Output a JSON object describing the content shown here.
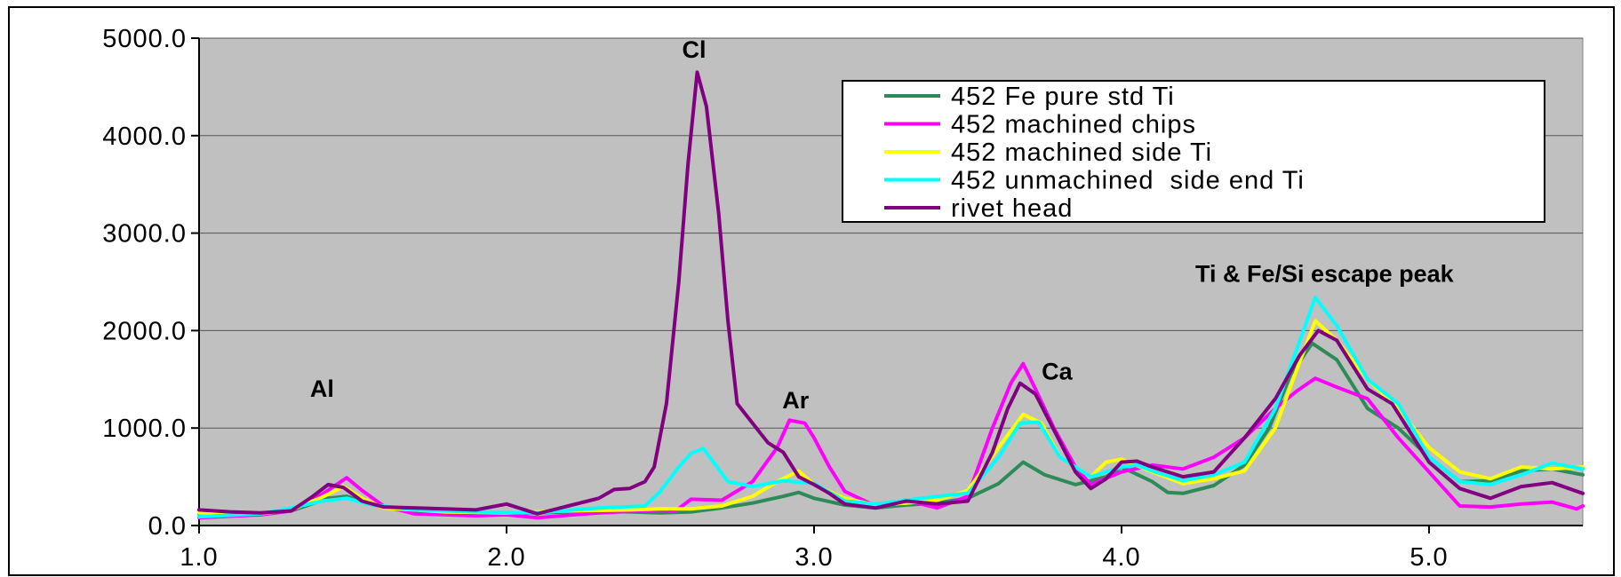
{
  "chart_data": {
    "type": "line",
    "title": "",
    "xlabel": "",
    "ylabel": "",
    "xlim": [
      1.0,
      5.5
    ],
    "ylim": [
      0,
      5000
    ],
    "grid": true,
    "legend_position": "top-right",
    "x_ticks": [
      "1.0",
      "2.0",
      "3.0",
      "4.0",
      "5.0"
    ],
    "y_ticks": [
      "0.0",
      "1000.0",
      "2000.0",
      "3000.0",
      "4000.0",
      "5000.0"
    ],
    "annotations": [
      {
        "text": "Al",
        "x": 1.4,
        "y": 1320
      },
      {
        "text": "Cl",
        "x": 2.61,
        "y": 4800
      },
      {
        "text": "Ar",
        "x": 2.94,
        "y": 1200
      },
      {
        "text": "Ca",
        "x": 3.79,
        "y": 1500
      },
      {
        "text": "Ti & Fe/Si escape peak",
        "x": 4.66,
        "y": 2500
      }
    ],
    "series": [
      {
        "name": "452 Fe pure std Ti",
        "color": "#2E8B57",
        "points": [
          [
            1.0,
            120
          ],
          [
            1.2,
            110
          ],
          [
            1.3,
            150
          ],
          [
            1.42,
            280
          ],
          [
            1.48,
            300
          ],
          [
            1.55,
            220
          ],
          [
            1.7,
            150
          ],
          [
            1.9,
            110
          ],
          [
            2.1,
            130
          ],
          [
            2.3,
            150
          ],
          [
            2.5,
            130
          ],
          [
            2.6,
            140
          ],
          [
            2.7,
            180
          ],
          [
            2.8,
            230
          ],
          [
            2.9,
            300
          ],
          [
            2.95,
            340
          ],
          [
            3.0,
            280
          ],
          [
            3.1,
            210
          ],
          [
            3.2,
            180
          ],
          [
            3.3,
            210
          ],
          [
            3.4,
            230
          ],
          [
            3.5,
            280
          ],
          [
            3.6,
            430
          ],
          [
            3.68,
            650
          ],
          [
            3.75,
            520
          ],
          [
            3.85,
            420
          ],
          [
            3.95,
            500
          ],
          [
            4.0,
            600
          ],
          [
            4.1,
            450
          ],
          [
            4.15,
            340
          ],
          [
            4.2,
            330
          ],
          [
            4.3,
            410
          ],
          [
            4.4,
            620
          ],
          [
            4.48,
            1000
          ],
          [
            4.55,
            1550
          ],
          [
            4.62,
            1870
          ],
          [
            4.7,
            1700
          ],
          [
            4.8,
            1200
          ],
          [
            4.9,
            1000
          ],
          [
            5.0,
            700
          ],
          [
            5.1,
            450
          ],
          [
            5.2,
            460
          ],
          [
            5.3,
            560
          ],
          [
            5.4,
            580
          ],
          [
            5.5,
            520
          ]
        ]
      },
      {
        "name": "452 machined chips",
        "color": "#FF00FF",
        "points": [
          [
            1.0,
            80
          ],
          [
            1.2,
            110
          ],
          [
            1.3,
            150
          ],
          [
            1.4,
            320
          ],
          [
            1.48,
            490
          ],
          [
            1.53,
            360
          ],
          [
            1.6,
            200
          ],
          [
            1.7,
            120
          ],
          [
            1.9,
            100
          ],
          [
            2.0,
            110
          ],
          [
            2.1,
            80
          ],
          [
            2.3,
            130
          ],
          [
            2.5,
            160
          ],
          [
            2.55,
            150
          ],
          [
            2.6,
            270
          ],
          [
            2.7,
            260
          ],
          [
            2.8,
            450
          ],
          [
            2.88,
            800
          ],
          [
            2.92,
            1080
          ],
          [
            2.97,
            1050
          ],
          [
            3.0,
            900
          ],
          [
            3.05,
            600
          ],
          [
            3.1,
            350
          ],
          [
            3.2,
            200
          ],
          [
            3.3,
            260
          ],
          [
            3.4,
            180
          ],
          [
            3.5,
            300
          ],
          [
            3.58,
            1000
          ],
          [
            3.64,
            1460
          ],
          [
            3.68,
            1660
          ],
          [
            3.72,
            1400
          ],
          [
            3.78,
            1000
          ],
          [
            3.85,
            600
          ],
          [
            3.9,
            420
          ],
          [
            4.0,
            550
          ],
          [
            4.1,
            620
          ],
          [
            4.2,
            580
          ],
          [
            4.3,
            700
          ],
          [
            4.4,
            900
          ],
          [
            4.5,
            1200
          ],
          [
            4.57,
            1380
          ],
          [
            4.63,
            1510
          ],
          [
            4.7,
            1420
          ],
          [
            4.8,
            1300
          ],
          [
            4.9,
            900
          ],
          [
            5.0,
            550
          ],
          [
            5.1,
            200
          ],
          [
            5.2,
            190
          ],
          [
            5.3,
            220
          ],
          [
            5.4,
            240
          ],
          [
            5.48,
            170
          ],
          [
            5.5,
            200
          ]
        ]
      },
      {
        "name": "452 machined side Ti",
        "color": "#FFFF00",
        "points": [
          [
            1.0,
            130
          ],
          [
            1.2,
            120
          ],
          [
            1.3,
            160
          ],
          [
            1.4,
            290
          ],
          [
            1.47,
            400
          ],
          [
            1.53,
            280
          ],
          [
            1.6,
            180
          ],
          [
            1.8,
            140
          ],
          [
            2.0,
            130
          ],
          [
            2.2,
            150
          ],
          [
            2.4,
            160
          ],
          [
            2.5,
            170
          ],
          [
            2.6,
            170
          ],
          [
            2.7,
            200
          ],
          [
            2.8,
            300
          ],
          [
            2.88,
            450
          ],
          [
            2.95,
            560
          ],
          [
            3.0,
            420
          ],
          [
            3.1,
            280
          ],
          [
            3.2,
            210
          ],
          [
            3.3,
            230
          ],
          [
            3.4,
            260
          ],
          [
            3.5,
            360
          ],
          [
            3.6,
            800
          ],
          [
            3.68,
            1140
          ],
          [
            3.74,
            1050
          ],
          [
            3.8,
            700
          ],
          [
            3.9,
            500
          ],
          [
            3.95,
            650
          ],
          [
            4.0,
            680
          ],
          [
            4.1,
            550
          ],
          [
            4.2,
            430
          ],
          [
            4.3,
            480
          ],
          [
            4.4,
            560
          ],
          [
            4.5,
            1000
          ],
          [
            4.57,
            1600
          ],
          [
            4.63,
            2100
          ],
          [
            4.7,
            1900
          ],
          [
            4.8,
            1500
          ],
          [
            4.9,
            1200
          ],
          [
            5.0,
            800
          ],
          [
            5.1,
            550
          ],
          [
            5.2,
            480
          ],
          [
            5.3,
            600
          ],
          [
            5.4,
            580
          ],
          [
            5.5,
            600
          ]
        ]
      },
      {
        "name": "452 unmachined  side end Ti",
        "color": "#00FFFF",
        "points": [
          [
            1.0,
            90
          ],
          [
            1.2,
            120
          ],
          [
            1.3,
            180
          ],
          [
            1.4,
            250
          ],
          [
            1.48,
            280
          ],
          [
            1.55,
            220
          ],
          [
            1.7,
            160
          ],
          [
            1.9,
            140
          ],
          [
            2.1,
            130
          ],
          [
            2.3,
            180
          ],
          [
            2.45,
            200
          ],
          [
            2.5,
            350
          ],
          [
            2.56,
            600
          ],
          [
            2.6,
            740
          ],
          [
            2.64,
            790
          ],
          [
            2.68,
            620
          ],
          [
            2.72,
            450
          ],
          [
            2.8,
            400
          ],
          [
            2.9,
            460
          ],
          [
            3.0,
            430
          ],
          [
            3.1,
            250
          ],
          [
            3.2,
            220
          ],
          [
            3.3,
            260
          ],
          [
            3.4,
            300
          ],
          [
            3.5,
            330
          ],
          [
            3.6,
            700
          ],
          [
            3.67,
            1050
          ],
          [
            3.73,
            1060
          ],
          [
            3.8,
            700
          ],
          [
            3.9,
            500
          ],
          [
            4.0,
            600
          ],
          [
            4.05,
            620
          ],
          [
            4.1,
            560
          ],
          [
            4.2,
            460
          ],
          [
            4.3,
            520
          ],
          [
            4.4,
            650
          ],
          [
            4.5,
            1200
          ],
          [
            4.58,
            1900
          ],
          [
            4.63,
            2340
          ],
          [
            4.7,
            2050
          ],
          [
            4.8,
            1500
          ],
          [
            4.9,
            1250
          ],
          [
            5.0,
            700
          ],
          [
            5.1,
            450
          ],
          [
            5.2,
            420
          ],
          [
            5.3,
            520
          ],
          [
            5.4,
            640
          ],
          [
            5.5,
            580
          ]
        ]
      },
      {
        "name": "rivet head",
        "color": "#800080",
        "points": [
          [
            1.0,
            160
          ],
          [
            1.1,
            140
          ],
          [
            1.2,
            130
          ],
          [
            1.3,
            150
          ],
          [
            1.37,
            300
          ],
          [
            1.42,
            420
          ],
          [
            1.47,
            390
          ],
          [
            1.53,
            250
          ],
          [
            1.6,
            190
          ],
          [
            1.8,
            170
          ],
          [
            1.9,
            160
          ],
          [
            2.0,
            220
          ],
          [
            2.1,
            120
          ],
          [
            2.2,
            200
          ],
          [
            2.3,
            280
          ],
          [
            2.35,
            370
          ],
          [
            2.4,
            380
          ],
          [
            2.45,
            450
          ],
          [
            2.48,
            600
          ],
          [
            2.52,
            1250
          ],
          [
            2.56,
            2500
          ],
          [
            2.59,
            3700
          ],
          [
            2.62,
            4650
          ],
          [
            2.65,
            4300
          ],
          [
            2.69,
            3200
          ],
          [
            2.72,
            2100
          ],
          [
            2.75,
            1250
          ],
          [
            2.8,
            1050
          ],
          [
            2.85,
            850
          ],
          [
            2.9,
            750
          ],
          [
            2.95,
            500
          ],
          [
            3.0,
            420
          ],
          [
            3.05,
            330
          ],
          [
            3.1,
            220
          ],
          [
            3.2,
            180
          ],
          [
            3.3,
            250
          ],
          [
            3.4,
            220
          ],
          [
            3.5,
            250
          ],
          [
            3.58,
            750
          ],
          [
            3.63,
            1200
          ],
          [
            3.67,
            1460
          ],
          [
            3.72,
            1350
          ],
          [
            3.78,
            980
          ],
          [
            3.85,
            550
          ],
          [
            3.9,
            380
          ],
          [
            3.95,
            480
          ],
          [
            4.0,
            650
          ],
          [
            4.05,
            660
          ],
          [
            4.1,
            600
          ],
          [
            4.2,
            500
          ],
          [
            4.3,
            550
          ],
          [
            4.4,
            900
          ],
          [
            4.5,
            1300
          ],
          [
            4.58,
            1750
          ],
          [
            4.64,
            2000
          ],
          [
            4.7,
            1900
          ],
          [
            4.8,
            1400
          ],
          [
            4.88,
            1250
          ],
          [
            4.95,
            900
          ],
          [
            5.0,
            650
          ],
          [
            5.1,
            380
          ],
          [
            5.2,
            280
          ],
          [
            5.3,
            400
          ],
          [
            5.4,
            440
          ],
          [
            5.5,
            330
          ]
        ]
      }
    ]
  }
}
